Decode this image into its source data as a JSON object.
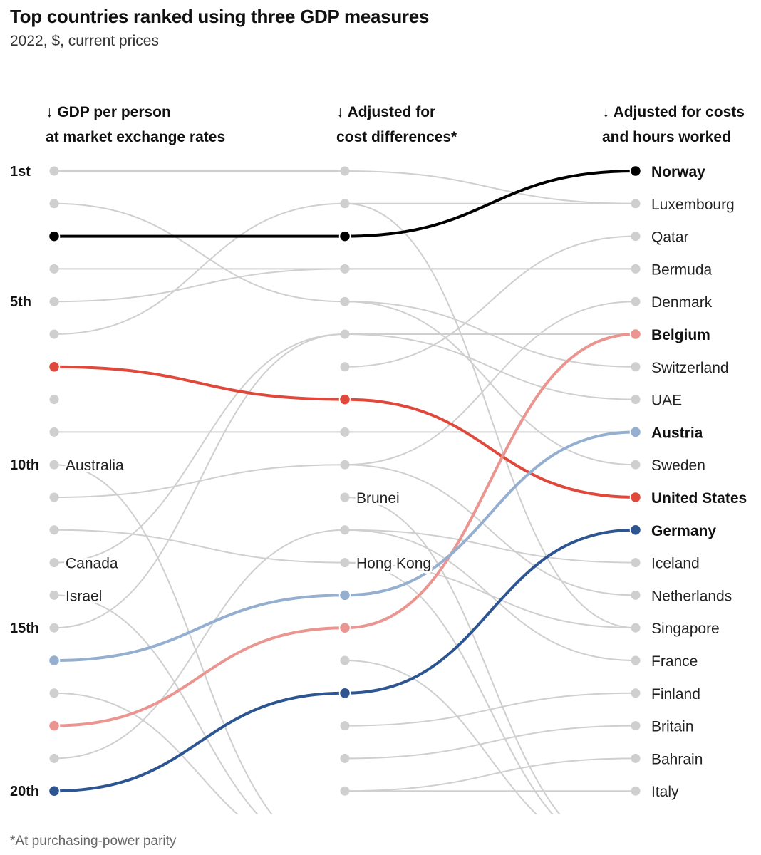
{
  "title": "Top countries ranked using three GDP measures",
  "subtitle": "2022, $, current prices",
  "columns": [
    {
      "arrow": "↓",
      "line1": "GDP per person",
      "line2": "at market exchange rates"
    },
    {
      "arrow": "↓",
      "line1": "Adjusted for",
      "line2": "cost differences*"
    },
    {
      "arrow": "↓",
      "line1": "Adjusted for costs",
      "line2": "and hours worked"
    }
  ],
  "footnote": "*At purchasing-power parity",
  "chart_data": {
    "type": "bump",
    "rank_labels": [
      {
        "rank": 1,
        "text": "1st"
      },
      {
        "rank": 5,
        "text": "5th"
      },
      {
        "rank": 10,
        "text": "10th"
      },
      {
        "rank": 15,
        "text": "15th"
      },
      {
        "rank": 20,
        "text": "20th"
      }
    ],
    "colors": {
      "grey": "#cfcfcf",
      "norway": "#000000",
      "united_states": "#e0483c",
      "belgium": "#eb9590",
      "austria": "#94afd0",
      "germany": "#2d5591"
    },
    "right_labels": [
      {
        "rank": 1,
        "text": "Norway",
        "bold": true
      },
      {
        "rank": 2,
        "text": "Luxembourg",
        "bold": false
      },
      {
        "rank": 3,
        "text": "Qatar",
        "bold": false
      },
      {
        "rank": 4,
        "text": "Bermuda",
        "bold": false
      },
      {
        "rank": 5,
        "text": "Denmark",
        "bold": false
      },
      {
        "rank": 6,
        "text": "Belgium",
        "bold": true
      },
      {
        "rank": 7,
        "text": "Switzerland",
        "bold": false
      },
      {
        "rank": 8,
        "text": "UAE",
        "bold": false
      },
      {
        "rank": 9,
        "text": "Austria",
        "bold": true
      },
      {
        "rank": 10,
        "text": "Sweden",
        "bold": false
      },
      {
        "rank": 11,
        "text": "United States",
        "bold": true
      },
      {
        "rank": 12,
        "text": "Germany",
        "bold": true
      },
      {
        "rank": 13,
        "text": "Iceland",
        "bold": false
      },
      {
        "rank": 14,
        "text": "Netherlands",
        "bold": false
      },
      {
        "rank": 15,
        "text": "Singapore",
        "bold": false
      },
      {
        "rank": 16,
        "text": "France",
        "bold": false
      },
      {
        "rank": 17,
        "text": "Finland",
        "bold": false
      },
      {
        "rank": 18,
        "text": "Britain",
        "bold": false
      },
      {
        "rank": 19,
        "text": "Bahrain",
        "bold": false
      },
      {
        "rank": 20,
        "text": "Italy",
        "bold": false
      }
    ],
    "inline_labels": [
      {
        "col": 0,
        "rank": 10,
        "text": "Australia"
      },
      {
        "col": 0,
        "rank": 13,
        "text": "Canada"
      },
      {
        "col": 0,
        "rank": 14,
        "text": "Israel"
      },
      {
        "col": 1,
        "rank": 11,
        "text": "Brunei"
      },
      {
        "col": 1,
        "rank": 13,
        "text": "Hong Kong"
      }
    ],
    "highlighted": [
      {
        "name": "Norway",
        "ranks": [
          3,
          3,
          1
        ],
        "color": "#000000"
      },
      {
        "name": "United States",
        "ranks": [
          7,
          8,
          11
        ],
        "color": "#e0483c"
      },
      {
        "name": "Belgium",
        "ranks": [
          18,
          15,
          6
        ],
        "color": "#eb9590"
      },
      {
        "name": "Austria",
        "ranks": [
          16,
          14,
          9
        ],
        "color": "#94afd0"
      },
      {
        "name": "Germany",
        "ranks": [
          20,
          17,
          12
        ],
        "color": "#2d5591"
      }
    ],
    "grey_paths": [
      {
        "ranks": [
          1,
          1,
          2
        ]
      },
      {
        "ranks": [
          2,
          5,
          7
        ]
      },
      {
        "ranks": [
          4,
          4,
          4
        ]
      },
      {
        "ranks": [
          5,
          4,
          4
        ]
      },
      {
        "ranks": [
          6,
          2,
          2
        ]
      },
      {
        "ranks": [
          9,
          9,
          9
        ]
      },
      {
        "ranks": [
          10,
          22,
          22
        ]
      },
      {
        "ranks": [
          11,
          10,
          5
        ]
      },
      {
        "ranks": [
          12,
          13,
          15
        ]
      },
      {
        "ranks": [
          13,
          6,
          8
        ]
      },
      {
        "ranks": [
          14,
          22,
          22
        ]
      },
      {
        "ranks": [
          15,
          6,
          6
        ]
      },
      {
        "ranks": [
          17,
          22,
          22
        ]
      },
      {
        "ranks": [
          19,
          12,
          13
        ]
      },
      {
        "ranks": [
          null,
          2,
          15
        ]
      },
      {
        "ranks": [
          null,
          5,
          10
        ]
      },
      {
        "ranks": [
          null,
          7,
          3
        ]
      },
      {
        "ranks": [
          null,
          10,
          14
        ]
      },
      {
        "ranks": [
          null,
          11,
          22
        ]
      },
      {
        "ranks": [
          null,
          12,
          16
        ]
      },
      {
        "ranks": [
          null,
          13,
          22
        ]
      },
      {
        "ranks": [
          null,
          16,
          22
        ]
      },
      {
        "ranks": [
          null,
          18,
          17
        ]
      },
      {
        "ranks": [
          null,
          19,
          18
        ]
      },
      {
        "ranks": [
          null,
          20,
          19
        ]
      },
      {
        "ranks": [
          null,
          20,
          20
        ]
      }
    ]
  }
}
